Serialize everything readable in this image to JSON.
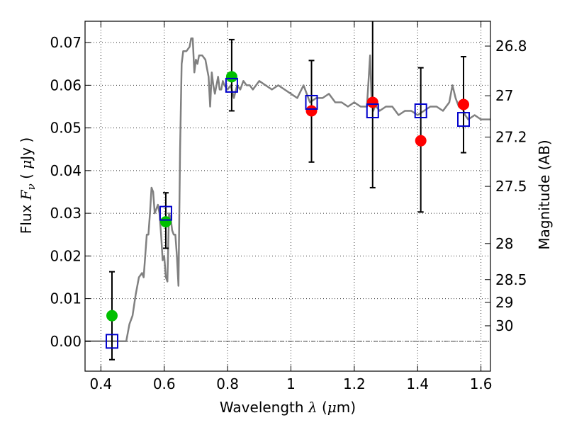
{
  "chart_data": {
    "type": "scatter",
    "title": "",
    "xlabel": {
      "prefix": "Wavelength  ",
      "symbol": "λ",
      "unit_open": " (",
      "unit_mu": "μ",
      "unit_rest": "m)"
    },
    "ylabel": {
      "prefix": "Flux  ",
      "symbol": "F",
      "subscript": "ν",
      "unit_open": "  (  ",
      "unit_mu": "μ",
      "unit_rest": "Jy  )"
    },
    "y2label": "Magnitude (AB)",
    "xlim": [
      0.35,
      1.63
    ],
    "ylim": [
      -0.007,
      0.075
    ],
    "grid": true,
    "x_ticks": [
      {
        "value": 0.4,
        "label": "0.4"
      },
      {
        "value": 0.6,
        "label": "0.6"
      },
      {
        "value": 0.8,
        "label": "0.8"
      },
      {
        "value": 1.0,
        "label": "1"
      },
      {
        "value": 1.2,
        "label": "1.2"
      },
      {
        "value": 1.4,
        "label": "1.4"
      },
      {
        "value": 1.6,
        "label": "1.6"
      }
    ],
    "y_ticks": [
      {
        "value": 0.0,
        "label": "0.00"
      },
      {
        "value": 0.01,
        "label": "0.01"
      },
      {
        "value": 0.02,
        "label": "0.02"
      },
      {
        "value": 0.03,
        "label": "0.03"
      },
      {
        "value": 0.04,
        "label": "0.04"
      },
      {
        "value": 0.05,
        "label": "0.05"
      },
      {
        "value": 0.06,
        "label": "0.06"
      },
      {
        "value": 0.07,
        "label": "0.07"
      }
    ],
    "mag_ticks": [
      {
        "mag": 26.8,
        "label": "26.8"
      },
      {
        "mag": 27.0,
        "label": "27"
      },
      {
        "mag": 27.2,
        "label": "27.2"
      },
      {
        "mag": 27.5,
        "label": "27.5"
      },
      {
        "mag": 28.0,
        "label": "28"
      },
      {
        "mag": 28.5,
        "label": "28.5"
      },
      {
        "mag": 29.0,
        "label": "29"
      },
      {
        "mag": 30.0,
        "label": "30"
      }
    ],
    "zero_line": 0.0,
    "series": [
      {
        "name": "template-sed",
        "style": "line",
        "color": "#808080",
        "x": [
          0.35,
          0.48,
          0.49,
          0.5,
          0.51,
          0.52,
          0.53,
          0.535,
          0.54,
          0.545,
          0.55,
          0.555,
          0.56,
          0.565,
          0.57,
          0.58,
          0.585,
          0.59,
          0.595,
          0.6,
          0.605,
          0.61,
          0.615,
          0.62,
          0.625,
          0.63,
          0.635,
          0.64,
          0.645,
          0.65,
          0.655,
          0.66,
          0.67,
          0.68,
          0.685,
          0.69,
          0.695,
          0.7,
          0.705,
          0.71,
          0.72,
          0.73,
          0.735,
          0.74,
          0.745,
          0.75,
          0.755,
          0.76,
          0.77,
          0.775,
          0.78,
          0.785,
          0.79,
          0.8,
          0.81,
          0.82,
          0.83,
          0.84,
          0.85,
          0.86,
          0.87,
          0.88,
          0.9,
          0.92,
          0.94,
          0.96,
          0.98,
          1.0,
          1.02,
          1.04,
          1.05,
          1.06,
          1.08,
          1.1,
          1.12,
          1.14,
          1.16,
          1.18,
          1.2,
          1.22,
          1.24,
          1.25,
          1.255,
          1.26,
          1.265,
          1.27,
          1.28,
          1.3,
          1.32,
          1.34,
          1.36,
          1.38,
          1.4,
          1.42,
          1.44,
          1.46,
          1.48,
          1.5,
          1.51,
          1.52,
          1.53,
          1.54,
          1.55,
          1.56,
          1.58,
          1.6,
          1.63
        ],
        "y": [
          0.0,
          0.0,
          0.004,
          0.006,
          0.011,
          0.015,
          0.016,
          0.015,
          0.02,
          0.025,
          0.025,
          0.03,
          0.036,
          0.035,
          0.03,
          0.032,
          0.03,
          0.025,
          0.019,
          0.02,
          0.015,
          0.014,
          0.03,
          0.029,
          0.026,
          0.025,
          0.025,
          0.02,
          0.013,
          0.045,
          0.065,
          0.068,
          0.068,
          0.069,
          0.071,
          0.071,
          0.063,
          0.066,
          0.065,
          0.067,
          0.067,
          0.066,
          0.064,
          0.062,
          0.055,
          0.063,
          0.06,
          0.058,
          0.062,
          0.059,
          0.059,
          0.061,
          0.06,
          0.059,
          0.06,
          0.057,
          0.06,
          0.059,
          0.061,
          0.06,
          0.06,
          0.059,
          0.061,
          0.06,
          0.059,
          0.06,
          0.059,
          0.058,
          0.057,
          0.06,
          0.058,
          0.056,
          0.057,
          0.057,
          0.058,
          0.056,
          0.056,
          0.055,
          0.056,
          0.055,
          0.055,
          0.067,
          0.056,
          0.054,
          0.055,
          0.055,
          0.054,
          0.055,
          0.055,
          0.053,
          0.054,
          0.054,
          0.053,
          0.054,
          0.055,
          0.055,
          0.054,
          0.056,
          0.06,
          0.057,
          0.055,
          0.055,
          0.053,
          0.052,
          0.053,
          0.052,
          0.052
        ]
      },
      {
        "name": "observed-flux",
        "style": "errorbar",
        "color": "#000000",
        "x": [
          0.435,
          0.605,
          0.813,
          1.065,
          1.258,
          1.41,
          1.545
        ],
        "y": [
          0.006,
          0.028,
          0.062,
          0.054,
          0.056,
          0.047,
          0.0555
        ],
        "yerr_low": [
          0.0103,
          0.0062,
          0.008,
          0.012,
          0.02,
          0.0167,
          0.0113
        ],
        "yerr_high": [
          0.0103,
          0.0068,
          0.0087,
          0.0118,
          0.0197,
          0.0171,
          0.0112
        ]
      },
      {
        "name": "detected-points",
        "style": "marker",
        "marker": "circle",
        "color": "#00c000",
        "x": [
          0.435,
          0.605,
          0.813
        ],
        "y": [
          0.006,
          0.028,
          0.062
        ]
      },
      {
        "name": "upper-points",
        "style": "marker",
        "marker": "circle",
        "color": "#ff0000",
        "x": [
          1.065,
          1.258,
          1.41,
          1.545
        ],
        "y": [
          0.054,
          0.056,
          0.047,
          0.0555
        ]
      },
      {
        "name": "model-points",
        "style": "marker",
        "marker": "square-open",
        "color": "#0000cc",
        "x": [
          0.435,
          0.605,
          0.813,
          1.065,
          1.258,
          1.41,
          1.545
        ],
        "y": [
          0.0,
          0.03,
          0.06,
          0.056,
          0.054,
          0.054,
          0.052
        ]
      }
    ]
  }
}
